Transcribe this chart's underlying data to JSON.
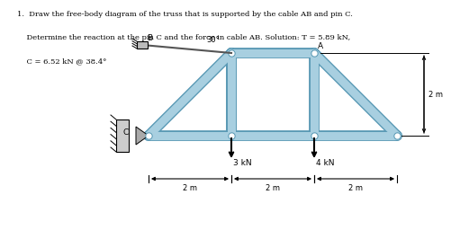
{
  "title_line1": "1.  Draw the free-body diagram of the truss that is supported by the cable AB and pin C.",
  "title_line2": "    Determine the reaction at the pin C and the force in cable AB. Solution: T = 5.89 kN,",
  "title_line3": "    C = 6.52 kN @ 38.4°",
  "truss_color": "#a8cfe0",
  "truss_edge_color": "#5a9ab5",
  "bg_color": "#ffffff",
  "load1_val": "3 kN",
  "load2_val": "4 kN",
  "dim_y_val": "2 m",
  "dim_labels": [
    "2 m",
    "2 m",
    "2 m"
  ],
  "angle_label": "30°",
  "node_label_A": "A",
  "node_label_B": "B",
  "node_label_C": "C"
}
